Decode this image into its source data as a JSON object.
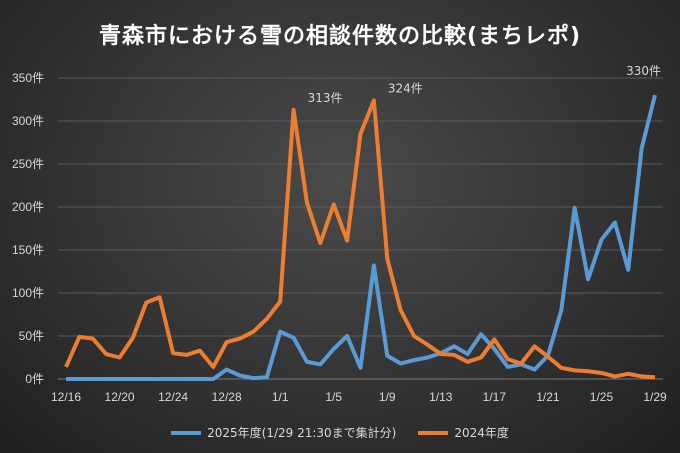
{
  "chart_data": {
    "type": "line",
    "title": "青森市における雪の相談件数の比較(まちレポ)",
    "x": [
      "12/16",
      "12/17",
      "12/18",
      "12/19",
      "12/20",
      "12/21",
      "12/22",
      "12/23",
      "12/24",
      "12/25",
      "12/26",
      "12/27",
      "12/28",
      "12/29",
      "12/30",
      "12/31",
      "1/1",
      "1/2",
      "1/3",
      "1/4",
      "1/5",
      "1/6",
      "1/7",
      "1/8",
      "1/9",
      "1/10",
      "1/11",
      "1/12",
      "1/13",
      "1/14",
      "1/15",
      "1/16",
      "1/17",
      "1/18",
      "1/19",
      "1/20",
      "1/21",
      "1/22",
      "1/23",
      "1/24",
      "1/25",
      "1/26",
      "1/27",
      "1/28",
      "1/29"
    ],
    "x_tick_labels": [
      "12/16",
      "12/20",
      "12/24",
      "12/28",
      "1/1",
      "1/5",
      "1/9",
      "1/13",
      "1/17",
      "1/21",
      "1/25",
      "1/29"
    ],
    "y_tick_labels": [
      "0件",
      "50件",
      "100件",
      "150件",
      "200件",
      "250件",
      "300件",
      "350件"
    ],
    "ylim": [
      0,
      350
    ],
    "grid": true,
    "legend_placement": "bottom",
    "series": [
      {
        "name": "2025年度(1/29 21:30まで集計分)",
        "color": "#5b9bd5",
        "values": [
          0,
          0,
          0,
          0,
          0,
          0,
          0,
          0,
          0,
          0,
          0,
          0,
          11,
          4,
          1,
          2,
          55,
          48,
          20,
          17,
          35,
          50,
          13,
          132,
          27,
          18,
          22,
          25,
          30,
          38,
          29,
          52,
          35,
          14,
          17,
          11,
          27,
          80,
          199,
          116,
          162,
          182,
          127,
          268,
          330
        ]
      },
      {
        "name": "2024年度",
        "color": "#ed7d31",
        "values": [
          14,
          49,
          47,
          29,
          25,
          48,
          89,
          95,
          30,
          28,
          33,
          14,
          43,
          47,
          55,
          70,
          90,
          313,
          205,
          158,
          203,
          161,
          285,
          324,
          140,
          80,
          50,
          40,
          29,
          28,
          20,
          25,
          46,
          23,
          18,
          38,
          26,
          13,
          10,
          9,
          7,
          3,
          6,
          3,
          2
        ]
      }
    ],
    "annotations": [
      {
        "text": "313件",
        "series": 1,
        "x": "1/2"
      },
      {
        "text": "324件",
        "series": 1,
        "x": "1/8"
      },
      {
        "text": "330件",
        "series": 0,
        "x": "1/29"
      }
    ]
  }
}
